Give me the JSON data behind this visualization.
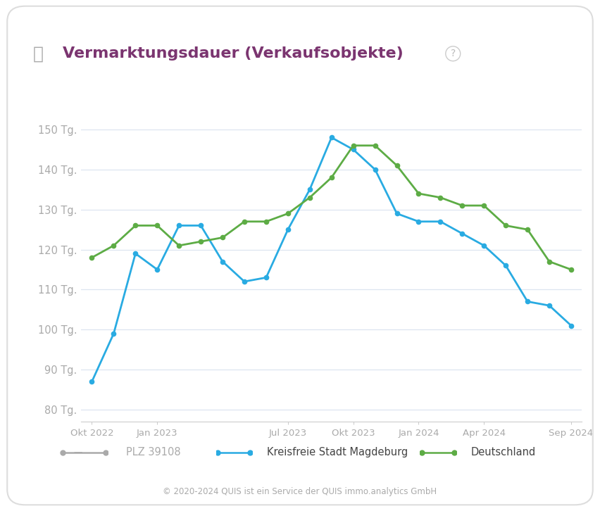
{
  "title": "Vermarktungsdauer (Verkaufsobjekte)",
  "ylabel_ticks": [
    "80 Tg.",
    "90 Tg.",
    "100 Tg.",
    "110 Tg.",
    "120 Tg.",
    "130 Tg.",
    "140 Tg.",
    "150 Tg."
  ],
  "ytick_values": [
    80,
    90,
    100,
    110,
    120,
    130,
    140,
    150
  ],
  "ylim": [
    77,
    153
  ],
  "xlabel_ticks": [
    "Okt 2022",
    "Jan 2023",
    "Jul 2023",
    "Okt 2023",
    "Jan 2024",
    "Apr 2024",
    "Sep 2024"
  ],
  "x_tick_pos": [
    0,
    3,
    9,
    12,
    15,
    18,
    22
  ],
  "magdeburg_y": [
    87,
    99,
    119,
    115,
    126,
    126,
    117,
    112,
    113,
    125,
    135,
    148,
    145,
    140,
    129,
    127,
    127,
    124,
    121,
    116,
    107,
    106,
    101
  ],
  "deutschland_y": [
    118,
    121,
    126,
    126,
    121,
    122,
    123,
    127,
    127,
    129,
    133,
    138,
    146,
    146,
    141,
    134,
    133,
    131,
    131,
    126,
    125,
    117,
    115
  ],
  "magdeburg_color": "#29abe2",
  "deutschland_color": "#5dac45",
  "plz_color": "#aaaaaa",
  "title_color": "#7b3570",
  "tick_color": "#aaaaaa",
  "grid_color": "#dde5f0",
  "background_color": "#ffffff",
  "border_color": "#dddddd",
  "legend_plz": "PLZ 39108",
  "legend_magdeburg": "Kreisfreie Stadt Magdeburg",
  "legend_deutschland": "Deutschland",
  "footer": "© 2020-2024 QUIS ist ein Service der QUIS immo.analytics GmbH",
  "n_points": 23
}
